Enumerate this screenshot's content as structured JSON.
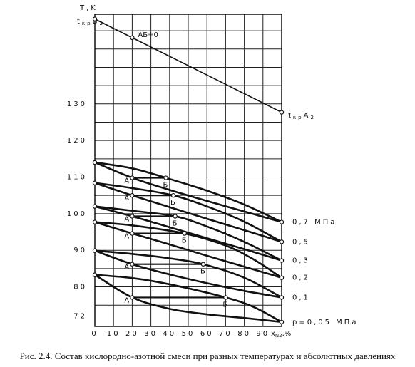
{
  "chart_data": {
    "type": "phase",
    "y_label": "T,K",
    "top_left_label": {
      "t": "t",
      "sub": "кр",
      "b": "B",
      "sub2": "2"
    },
    "top_right_label": {
      "t": "t",
      "sub": "кр",
      "a": "A",
      "sub2": "2"
    },
    "x_label": {
      "x": "x",
      "sub": "N2",
      "unit": ",%"
    },
    "caption": "Рис. 2.4. Состав кислородно-азотной смеси при разных температурах и абсолютных давлениях",
    "xlim": [
      0,
      100
    ],
    "ylim": [
      69.2,
      154.5
    ],
    "xticks": [
      0,
      10,
      20,
      30,
      40,
      50,
      60,
      70,
      80,
      90
    ],
    "yticks": [
      72,
      80,
      90,
      100,
      110,
      120,
      130
    ],
    "grid_x": [
      0,
      10,
      20,
      30,
      40,
      50,
      60,
      70,
      80,
      90,
      100
    ],
    "grid_y": [
      75,
      80,
      85,
      90,
      95,
      100,
      105,
      110,
      115,
      120,
      125,
      130,
      135,
      140,
      145,
      150
    ],
    "tie_labels": [
      "А",
      "Б"
    ],
    "top_line": {
      "label": "АБ=0",
      "x": [
        0,
        20,
        100
      ],
      "y": [
        153.2,
        148.1,
        127.7
      ]
    },
    "series": [
      {
        "name": "0,7 МПа",
        "lower": {
          "x": [
            0,
            20,
            40,
            60,
            80,
            100
          ],
          "y": [
            114,
            109.8,
            106.5,
            103.5,
            100.6,
            97.7
          ]
        },
        "upper": {
          "x": [
            0,
            20,
            38,
            60,
            80,
            100
          ],
          "y": [
            114,
            112.4,
            109.8,
            106.3,
            102.5,
            97.7
          ]
        },
        "tie": {
          "x": [
            20,
            38
          ],
          "y": 109.8
        }
      },
      {
        "name": "0,5",
        "lower": {
          "x": [
            0,
            20,
            40,
            60,
            80,
            100
          ],
          "y": [
            108.4,
            105.0,
            101.8,
            98.6,
            95.5,
            92.3
          ]
        },
        "upper": {
          "x": [
            0,
            20,
            42,
            60,
            80,
            100
          ],
          "y": [
            108.4,
            107.0,
            105.0,
            102.0,
            97.8,
            92.3
          ]
        },
        "tie": {
          "x": [
            20,
            42
          ],
          "y": 105.0
        }
      },
      {
        "name": "0,3",
        "lower": {
          "x": [
            0,
            20,
            40,
            60,
            80,
            100
          ],
          "y": [
            102,
            99.3,
            96.3,
            93.3,
            90.3,
            87.2
          ]
        },
        "upper": {
          "x": [
            0,
            20,
            43,
            60,
            80,
            100
          ],
          "y": [
            102,
            100.8,
            99.3,
            96.5,
            92.3,
            87.2
          ]
        },
        "tie": {
          "x": [
            20,
            43
          ],
          "y": 99.3
        }
      },
      {
        "name": "0,2",
        "lower": {
          "x": [
            0,
            20,
            40,
            60,
            80,
            100
          ],
          "y": [
            97.7,
            94.6,
            91.6,
            88.5,
            85.5,
            82.5
          ]
        },
        "upper": {
          "x": [
            0,
            20,
            48,
            70,
            85,
            100
          ],
          "y": [
            97.7,
            96.8,
            94.6,
            91.3,
            87.5,
            82.5
          ]
        },
        "tie": {
          "x": [
            20,
            48
          ],
          "y": 94.6
        }
      },
      {
        "name": "0,1",
        "lower": {
          "x": [
            0,
            20,
            40,
            60,
            80,
            100
          ],
          "y": [
            89.9,
            86.2,
            83.4,
            81.0,
            78.9,
            77.1
          ]
        },
        "upper": {
          "x": [
            0,
            20,
            40,
            58,
            80,
            100
          ],
          "y": [
            89.9,
            89.0,
            87.8,
            86.2,
            82.5,
            77.1
          ]
        },
        "tie": {
          "x": [
            20,
            58
          ],
          "y": 86.2
        }
      },
      {
        "name": "p=0,05 МПа",
        "lower": {
          "x": [
            0,
            20,
            40,
            60,
            80,
            100
          ],
          "y": [
            83.3,
            77.1,
            74.0,
            72.5,
            71.5,
            70.4
          ]
        },
        "upper": {
          "x": [
            0,
            20,
            40,
            70,
            85,
            100
          ],
          "y": [
            83.3,
            82.4,
            80.7,
            77.1,
            74.5,
            70.4
          ]
        },
        "tie": {
          "x": [
            20,
            70
          ],
          "y": 77.1
        }
      }
    ]
  }
}
